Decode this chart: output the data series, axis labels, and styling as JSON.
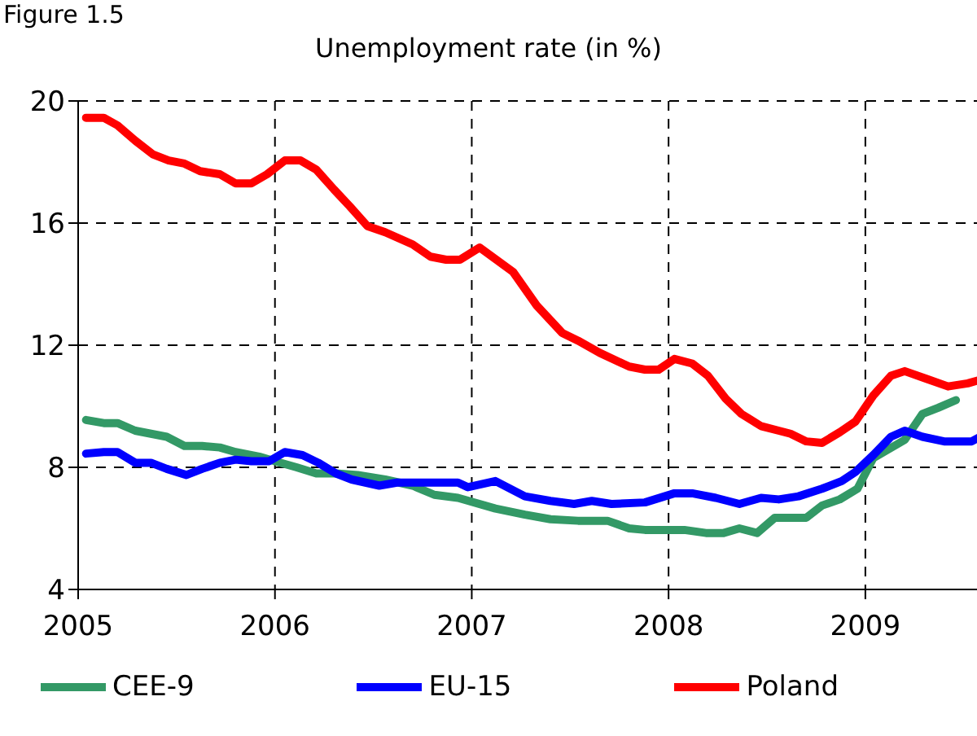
{
  "chart_data": {
    "type": "line",
    "title": "Unemployment rate (in %)",
    "annotations": [
      "Figure 1.5"
    ],
    "xlim": [
      2005,
      2009.65
    ],
    "xticks": [
      2005,
      2006,
      2007,
      2008,
      2009
    ],
    "ylim": [
      4,
      20
    ],
    "yticks": [
      4,
      8,
      12,
      16,
      20
    ],
    "grid": true,
    "legend": "bottom",
    "marker": "none",
    "line_style": "solid",
    "series": [
      {
        "name": "CEE-9",
        "color": "#339966",
        "x": [
          2005.04,
          2005.13,
          2005.2,
          2005.29,
          2005.37,
          2005.45,
          2005.54,
          2005.63,
          2005.72,
          2005.8,
          2005.92,
          2006.0,
          2006.11,
          2006.21,
          2006.31,
          2006.42,
          2006.56,
          2006.7,
          2006.81,
          2006.93,
          2007.12,
          2007.27,
          2007.4,
          2007.54,
          2007.69,
          2007.8,
          2007.88,
          2008.08,
          2008.19,
          2008.28,
          2008.36,
          2008.45,
          2008.54,
          2008.7,
          2008.78,
          2008.87,
          2008.96,
          2009.04,
          2009.12,
          2009.2,
          2009.29,
          2009.37,
          2009.46
        ],
        "values": [
          9.55,
          9.45,
          9.45,
          9.2,
          9.1,
          9.0,
          8.7,
          8.7,
          8.65,
          8.5,
          8.35,
          8.2,
          8.0,
          7.8,
          7.8,
          7.75,
          7.6,
          7.4,
          7.1,
          7.0,
          6.65,
          6.45,
          6.3,
          6.25,
          6.25,
          6.0,
          5.95,
          5.95,
          5.85,
          5.85,
          6.0,
          5.85,
          6.35,
          6.35,
          6.75,
          6.95,
          7.3,
          8.3,
          8.6,
          8.9,
          9.75,
          9.95,
          10.2
        ]
      },
      {
        "name": "Poland",
        "color": "#ff0000",
        "x": [
          2005.04,
          2005.13,
          2005.2,
          2005.29,
          2005.38,
          2005.46,
          2005.54,
          2005.62,
          2005.72,
          2005.8,
          2005.88,
          2005.96,
          2006.05,
          2006.13,
          2006.21,
          2006.3,
          2006.38,
          2006.47,
          2006.56,
          2006.7,
          2006.79,
          2006.87,
          2006.94,
          2007.04,
          2007.21,
          2007.33,
          2007.46,
          2007.54,
          2007.65,
          2007.8,
          2007.88,
          2007.95,
          2008.03,
          2008.12,
          2008.2,
          2008.29,
          2008.37,
          2008.47,
          2008.56,
          2008.62,
          2008.7,
          2008.78,
          2008.87,
          2008.95,
          2009.04,
          2009.13,
          2009.2,
          2009.31,
          2009.42,
          2009.52,
          2009.63
        ],
        "values": [
          19.45,
          19.45,
          19.2,
          18.7,
          18.25,
          18.05,
          17.95,
          17.7,
          17.6,
          17.3,
          17.3,
          17.6,
          18.05,
          18.05,
          17.75,
          17.1,
          16.55,
          15.9,
          15.7,
          15.3,
          14.9,
          14.8,
          14.8,
          15.2,
          14.4,
          13.3,
          12.4,
          12.15,
          11.75,
          11.3,
          11.2,
          11.2,
          11.55,
          11.4,
          11.0,
          10.25,
          9.75,
          9.35,
          9.2,
          9.1,
          8.85,
          8.8,
          9.15,
          9.5,
          10.35,
          11.0,
          11.15,
          10.9,
          10.65,
          10.75,
          10.95
        ]
      },
      {
        "name": "EU-15",
        "color": "#0000ff",
        "x": [
          2005.04,
          2005.13,
          2005.2,
          2005.29,
          2005.37,
          2005.45,
          2005.55,
          2005.63,
          2005.72,
          2005.8,
          2005.88,
          2005.97,
          2006.05,
          2006.14,
          2006.22,
          2006.31,
          2006.39,
          2006.53,
          2006.62,
          2006.76,
          2006.93,
          2006.98,
          2007.12,
          2007.27,
          2007.4,
          2007.52,
          2007.61,
          2007.71,
          2007.88,
          2008.03,
          2008.12,
          2008.24,
          2008.36,
          2008.47,
          2008.56,
          2008.66,
          2008.78,
          2008.88,
          2008.95,
          2009.04,
          2009.13,
          2009.2,
          2009.29,
          2009.4,
          2009.54,
          2009.63
        ],
        "values": [
          8.45,
          8.5,
          8.5,
          8.15,
          8.15,
          7.95,
          7.75,
          7.95,
          8.15,
          8.25,
          8.2,
          8.2,
          8.5,
          8.4,
          8.15,
          7.8,
          7.6,
          7.4,
          7.5,
          7.5,
          7.5,
          7.35,
          7.55,
          7.05,
          6.9,
          6.8,
          6.9,
          6.8,
          6.85,
          7.15,
          7.15,
          7.0,
          6.8,
          7.0,
          6.95,
          7.05,
          7.3,
          7.55,
          7.85,
          8.4,
          9.0,
          9.2,
          9.0,
          8.85,
          8.85,
          9.15
        ]
      }
    ]
  }
}
